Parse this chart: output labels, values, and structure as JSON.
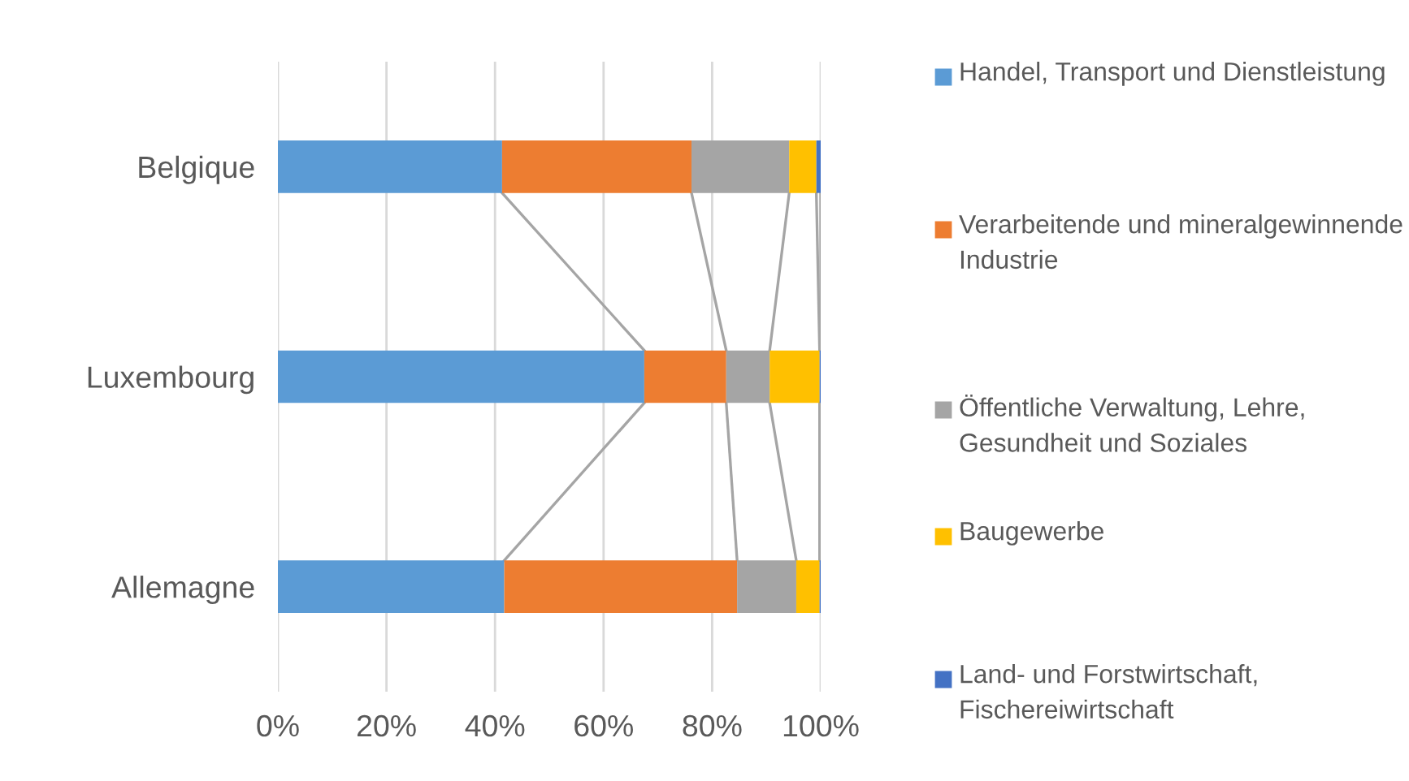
{
  "chart_data": {
    "type": "bar",
    "orientation": "horizontal",
    "stacked": true,
    "categories": [
      "Belgique",
      "Luxembourg",
      "Allemagne"
    ],
    "series": [
      {
        "name": "Handel, Transport und Dienstleistung",
        "color": "#5b9bd5",
        "values": [
          41.3,
          67.5,
          41.7
        ]
      },
      {
        "name": "Verarbeitende und mineralgewinnende Industrie",
        "color": "#ed7d31",
        "values": [
          34.9,
          15.1,
          42.9
        ]
      },
      {
        "name": "Öffentliche Verwaltung, Lehre, Gesundheit und Soziales",
        "color": "#a5a5a5",
        "values": [
          18.0,
          8.0,
          10.9
        ]
      },
      {
        "name": "Baugewerbe",
        "color": "#ffc000",
        "values": [
          5.0,
          9.2,
          4.3
        ]
      },
      {
        "name": "Land- und Forstwirtschaft, Fischereiwirtschaft",
        "color": "#4472c4",
        "values": [
          0.8,
          0.2,
          0.2
        ]
      }
    ],
    "xlim": [
      0,
      100
    ],
    "xticks": [
      {
        "value": 0,
        "label": "0%"
      },
      {
        "value": 20,
        "label": "20%"
      },
      {
        "value": 40,
        "label": "40%"
      },
      {
        "value": 60,
        "label": "60%"
      },
      {
        "value": 80,
        "label": "80%"
      },
      {
        "value": 100,
        "label": "100%"
      }
    ],
    "grid": "x",
    "legend": "right"
  }
}
